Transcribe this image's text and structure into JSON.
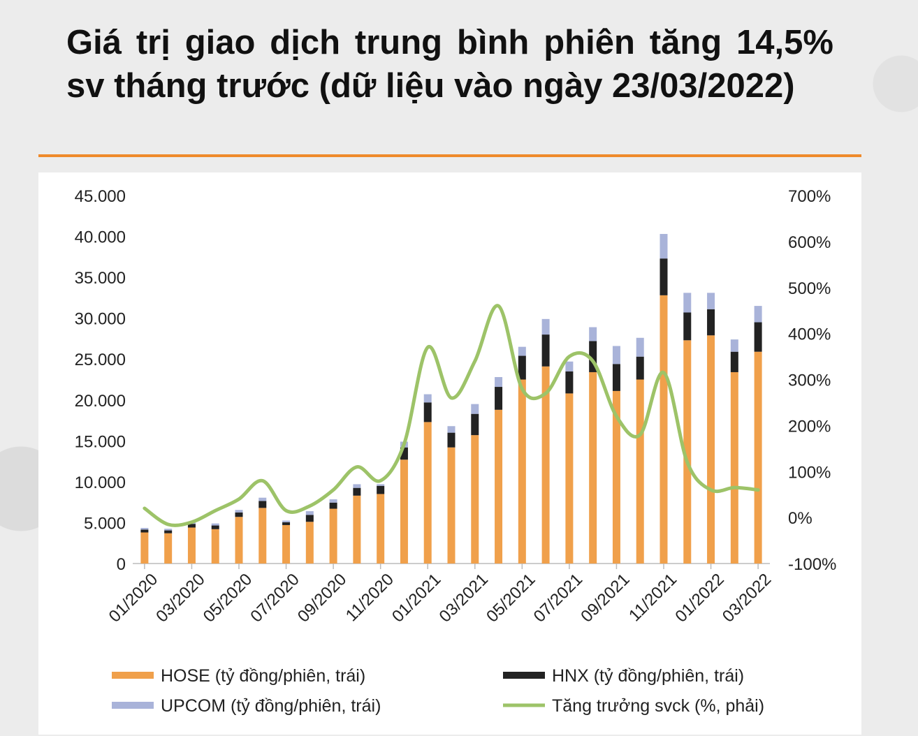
{
  "title": "Giá trị giao dịch trung bình phiên tăng 14,5% sv tháng trước (dữ liệu vào ngày 23/03/2022)",
  "colors": {
    "hose": "#f0a04b",
    "hnx": "#222222",
    "upcom": "#a9b3d9",
    "growth": "#9dc368",
    "divider": "#ef8a2b"
  },
  "chart_data": {
    "type": "bar",
    "stacked": true,
    "categories": [
      "01/2020",
      "02/2020",
      "03/2020",
      "04/2020",
      "05/2020",
      "06/2020",
      "07/2020",
      "08/2020",
      "09/2020",
      "10/2020",
      "11/2020",
      "12/2020",
      "01/2021",
      "02/2021",
      "03/2021",
      "04/2021",
      "05/2021",
      "06/2021",
      "07/2021",
      "08/2021",
      "09/2021",
      "10/2021",
      "11/2021",
      "12/2021",
      "01/2022",
      "02/2022",
      "03/2022"
    ],
    "x_tick_labels": [
      "01/2020",
      "03/2020",
      "05/2020",
      "07/2020",
      "09/2020",
      "11/2020",
      "01/2021",
      "03/2021",
      "05/2021",
      "07/2021",
      "09/2021",
      "11/2021",
      "01/2022",
      "03/2022"
    ],
    "series": [
      {
        "name": "HOSE (tỷ đồng/phiên, trái)",
        "axis": "left",
        "values": [
          3800,
          3700,
          4400,
          4200,
          5700,
          6800,
          4700,
          5100,
          6700,
          8300,
          8500,
          12700,
          17300,
          14200,
          15700,
          18800,
          22500,
          24100,
          20800,
          23400,
          21100,
          22500,
          32800,
          27300,
          27900,
          23400,
          25900
        ]
      },
      {
        "name": "HNX (tỷ đồng/phiên, trái)",
        "axis": "left",
        "values": [
          350,
          350,
          450,
          450,
          550,
          850,
          350,
          850,
          750,
          950,
          1000,
          1500,
          2400,
          1800,
          2600,
          2800,
          2900,
          3900,
          2700,
          3800,
          3300,
          2800,
          4500,
          3400,
          3200,
          2500,
          3600
        ]
      },
      {
        "name": "UPCOM (tỷ đồng/phiên, trái)",
        "axis": "left",
        "values": [
          200,
          200,
          250,
          250,
          300,
          400,
          200,
          450,
          400,
          450,
          200,
          700,
          1000,
          800,
          1200,
          1200,
          1100,
          1900,
          1200,
          1700,
          2200,
          2300,
          3000,
          2400,
          2000,
          1500,
          2000
        ]
      },
      {
        "name": "Tăng trưởng svck (%, phải)",
        "type": "line",
        "axis": "right",
        "values": [
          20,
          -15,
          -10,
          15,
          40,
          80,
          15,
          25,
          60,
          110,
          80,
          160,
          370,
          260,
          340,
          460,
          280,
          270,
          350,
          340,
          220,
          180,
          315,
          120,
          60,
          65,
          60
        ]
      }
    ],
    "ylim_left": [
      0,
      45000
    ],
    "yticks_left": [
      "45.000",
      "40.000",
      "35.000",
      "30.000",
      "25.000",
      "20.000",
      "15.000",
      "10.000",
      "5.000",
      "0"
    ],
    "ylim_right": [
      -100,
      700
    ],
    "yticks_right": [
      "700%",
      "600%",
      "500%",
      "400%",
      "300%",
      "200%",
      "100%",
      "0%",
      "-100%"
    ],
    "grid": false,
    "legend_position": "bottom"
  }
}
